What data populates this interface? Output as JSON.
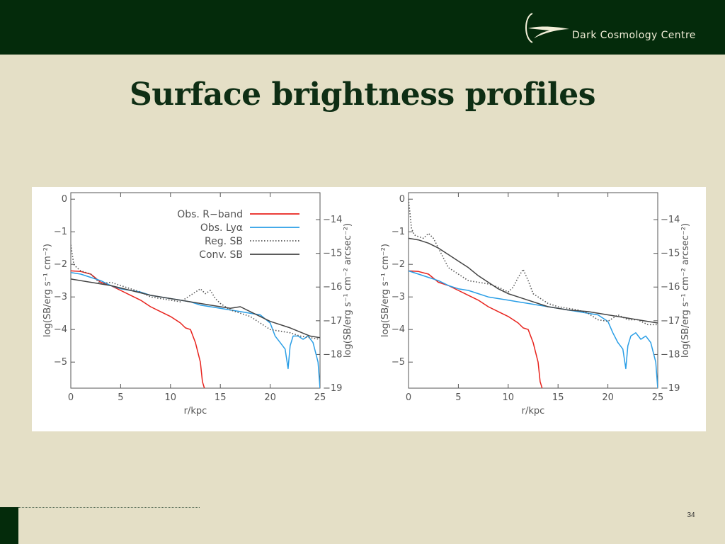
{
  "header": {
    "brand": "Dark Cosmology Centre",
    "logo_icon": "dark-cosmology-centre-logo",
    "bar_color": "#042b0b"
  },
  "slide": {
    "title": "Surface brightness profiles",
    "page_number": "34"
  },
  "chart_data": [
    {
      "type": "line",
      "xlabel": "r/kpc",
      "ylabel": "log(SB/erg s⁻¹ cm⁻²)",
      "y2label": "log(SB/erg s⁻¹ cm⁻² arcsec⁻²)",
      "xlim": [
        0,
        25
      ],
      "ylim": [
        -5.8,
        0.2
      ],
      "y2lim": [
        -19.0,
        -13.2
      ],
      "xticks": [
        0,
        5,
        10,
        15,
        20,
        25
      ],
      "yticks": [
        0,
        -1,
        -2,
        -3,
        -4,
        -5
      ],
      "y2ticks": [
        -14,
        -15,
        -16,
        -17,
        -18,
        -19
      ],
      "legend": "top-right",
      "series": [
        {
          "name": "Obs. R−band",
          "color": "#e8231d",
          "style": "solid",
          "x": [
            0,
            1,
            2,
            3,
            4,
            5,
            6,
            7,
            8,
            9,
            10,
            11,
            11.5,
            12,
            12.5,
            13,
            13.2,
            13.4
          ],
          "y": [
            -2.2,
            -2.22,
            -2.3,
            -2.55,
            -2.65,
            -2.8,
            -2.95,
            -3.1,
            -3.3,
            -3.45,
            -3.6,
            -3.8,
            -3.95,
            -4.0,
            -4.4,
            -5.0,
            -5.6,
            -5.8
          ]
        },
        {
          "name": "Obs. Lyα",
          "color": "#2a9ee6",
          "style": "solid",
          "x": [
            0,
            1,
            2,
            3,
            4,
            5,
            6,
            7,
            8,
            9,
            10,
            11,
            12,
            13,
            14,
            15,
            16,
            17,
            18,
            19,
            20,
            20.5,
            21,
            21.5,
            21.8,
            22,
            22.3,
            22.8,
            23.3,
            23.8,
            24.3,
            24.8,
            25
          ],
          "y": [
            -2.25,
            -2.3,
            -2.4,
            -2.5,
            -2.65,
            -2.75,
            -2.8,
            -2.85,
            -2.95,
            -3.0,
            -3.05,
            -3.1,
            -3.15,
            -3.25,
            -3.3,
            -3.35,
            -3.4,
            -3.45,
            -3.5,
            -3.55,
            -3.8,
            -4.2,
            -4.4,
            -4.6,
            -5.2,
            -4.5,
            -4.2,
            -4.2,
            -4.3,
            -4.2,
            -4.4,
            -5.0,
            -5.8
          ]
        },
        {
          "name": "Reg. SB",
          "color": "#555555",
          "style": "dotted",
          "x": [
            0,
            0.3,
            0.6,
            1,
            2,
            3,
            4,
            5,
            6,
            7,
            8,
            9,
            10,
            11,
            12,
            13,
            13.5,
            14,
            14.5,
            15,
            16,
            17,
            18,
            19,
            20,
            21,
            22,
            23,
            24,
            25
          ],
          "y": [
            -1.4,
            -2.0,
            -2.1,
            -2.2,
            -2.3,
            -2.6,
            -2.55,
            -2.65,
            -2.75,
            -2.85,
            -3.0,
            -3.05,
            -3.1,
            -3.15,
            -2.95,
            -2.75,
            -2.9,
            -2.8,
            -3.05,
            -3.2,
            -3.4,
            -3.5,
            -3.6,
            -3.8,
            -4.0,
            -4.05,
            -4.1,
            -4.2,
            -4.25,
            -4.3
          ]
        },
        {
          "name": "Conv. SB",
          "color": "#444444",
          "style": "solid",
          "x": [
            0,
            2,
            4,
            6,
            8,
            10,
            12,
            14,
            16,
            17,
            18,
            20,
            22,
            24,
            25
          ],
          "y": [
            -2.45,
            -2.55,
            -2.65,
            -2.8,
            -2.95,
            -3.05,
            -3.15,
            -3.25,
            -3.35,
            -3.3,
            -3.45,
            -3.75,
            -3.95,
            -4.2,
            -4.25
          ]
        }
      ]
    },
    {
      "type": "line",
      "xlabel": "r/kpc",
      "ylabel": "log(SB/erg s⁻¹ cm⁻²)",
      "y2label": "log(SB/erg s⁻¹ cm⁻² arcsec⁻²)",
      "xlim": [
        0,
        25
      ],
      "ylim": [
        -5.8,
        0.2
      ],
      "y2lim": [
        -19.0,
        -13.2
      ],
      "xticks": [
        0,
        5,
        10,
        15,
        20,
        25
      ],
      "yticks": [
        0,
        -1,
        -2,
        -3,
        -4,
        -5
      ],
      "y2ticks": [
        -14,
        -15,
        -16,
        -17,
        -18,
        -19
      ],
      "series": [
        {
          "color": "#e8231d",
          "style": "solid",
          "x": [
            0,
            1,
            2,
            3,
            4,
            5,
            6,
            7,
            8,
            9,
            10,
            11,
            11.5,
            12,
            12.5,
            13,
            13.2,
            13.4
          ],
          "y": [
            -2.2,
            -2.22,
            -2.3,
            -2.55,
            -2.65,
            -2.8,
            -2.95,
            -3.1,
            -3.3,
            -3.45,
            -3.6,
            -3.8,
            -3.95,
            -4.0,
            -4.4,
            -5.0,
            -5.6,
            -5.8
          ]
        },
        {
          "color": "#2a9ee6",
          "style": "solid",
          "x": [
            0,
            1,
            2,
            3,
            4,
            5,
            6,
            7,
            8,
            9,
            10,
            11,
            12,
            13,
            14,
            15,
            16,
            17,
            18,
            19,
            20,
            20.5,
            21,
            21.5,
            21.8,
            22,
            22.3,
            22.8,
            23.3,
            23.8,
            24.3,
            24.8,
            25
          ],
          "y": [
            -2.2,
            -2.3,
            -2.4,
            -2.5,
            -2.65,
            -2.75,
            -2.8,
            -2.9,
            -3.0,
            -3.05,
            -3.1,
            -3.15,
            -3.2,
            -3.25,
            -3.3,
            -3.35,
            -3.4,
            -3.45,
            -3.5,
            -3.55,
            -3.75,
            -4.1,
            -4.4,
            -4.6,
            -5.2,
            -4.5,
            -4.2,
            -4.1,
            -4.3,
            -4.2,
            -4.4,
            -5.0,
            -5.8
          ]
        },
        {
          "color": "#555555",
          "style": "dotted",
          "x": [
            0,
            0.3,
            0.6,
            1,
            1.5,
            2,
            2.5,
            3,
            4,
            5,
            6,
            7,
            8,
            9,
            10,
            10.5,
            11,
            11.5,
            12,
            12.5,
            13,
            14,
            15,
            16,
            17,
            18,
            19,
            20,
            21,
            22,
            23,
            24,
            25
          ],
          "y": [
            0.0,
            -0.9,
            -1.1,
            -1.15,
            -1.2,
            -1.05,
            -1.2,
            -1.5,
            -2.1,
            -2.3,
            -2.5,
            -2.55,
            -2.6,
            -2.7,
            -2.85,
            -2.7,
            -2.4,
            -2.15,
            -2.5,
            -2.9,
            -3.0,
            -3.2,
            -3.3,
            -3.35,
            -3.4,
            -3.5,
            -3.7,
            -3.75,
            -3.55,
            -3.7,
            -3.7,
            -3.85,
            -3.85
          ]
        },
        {
          "color": "#444444",
          "style": "solid",
          "x": [
            0,
            1,
            2,
            3,
            4,
            5,
            6,
            7,
            8,
            9,
            10,
            11,
            12,
            13,
            14,
            15,
            16,
            18,
            20,
            22,
            24,
            25
          ],
          "y": [
            -1.2,
            -1.25,
            -1.35,
            -1.5,
            -1.7,
            -1.9,
            -2.1,
            -2.35,
            -2.55,
            -2.75,
            -2.9,
            -3.0,
            -3.1,
            -3.2,
            -3.3,
            -3.35,
            -3.4,
            -3.45,
            -3.55,
            -3.65,
            -3.75,
            -3.8
          ]
        }
      ]
    }
  ]
}
